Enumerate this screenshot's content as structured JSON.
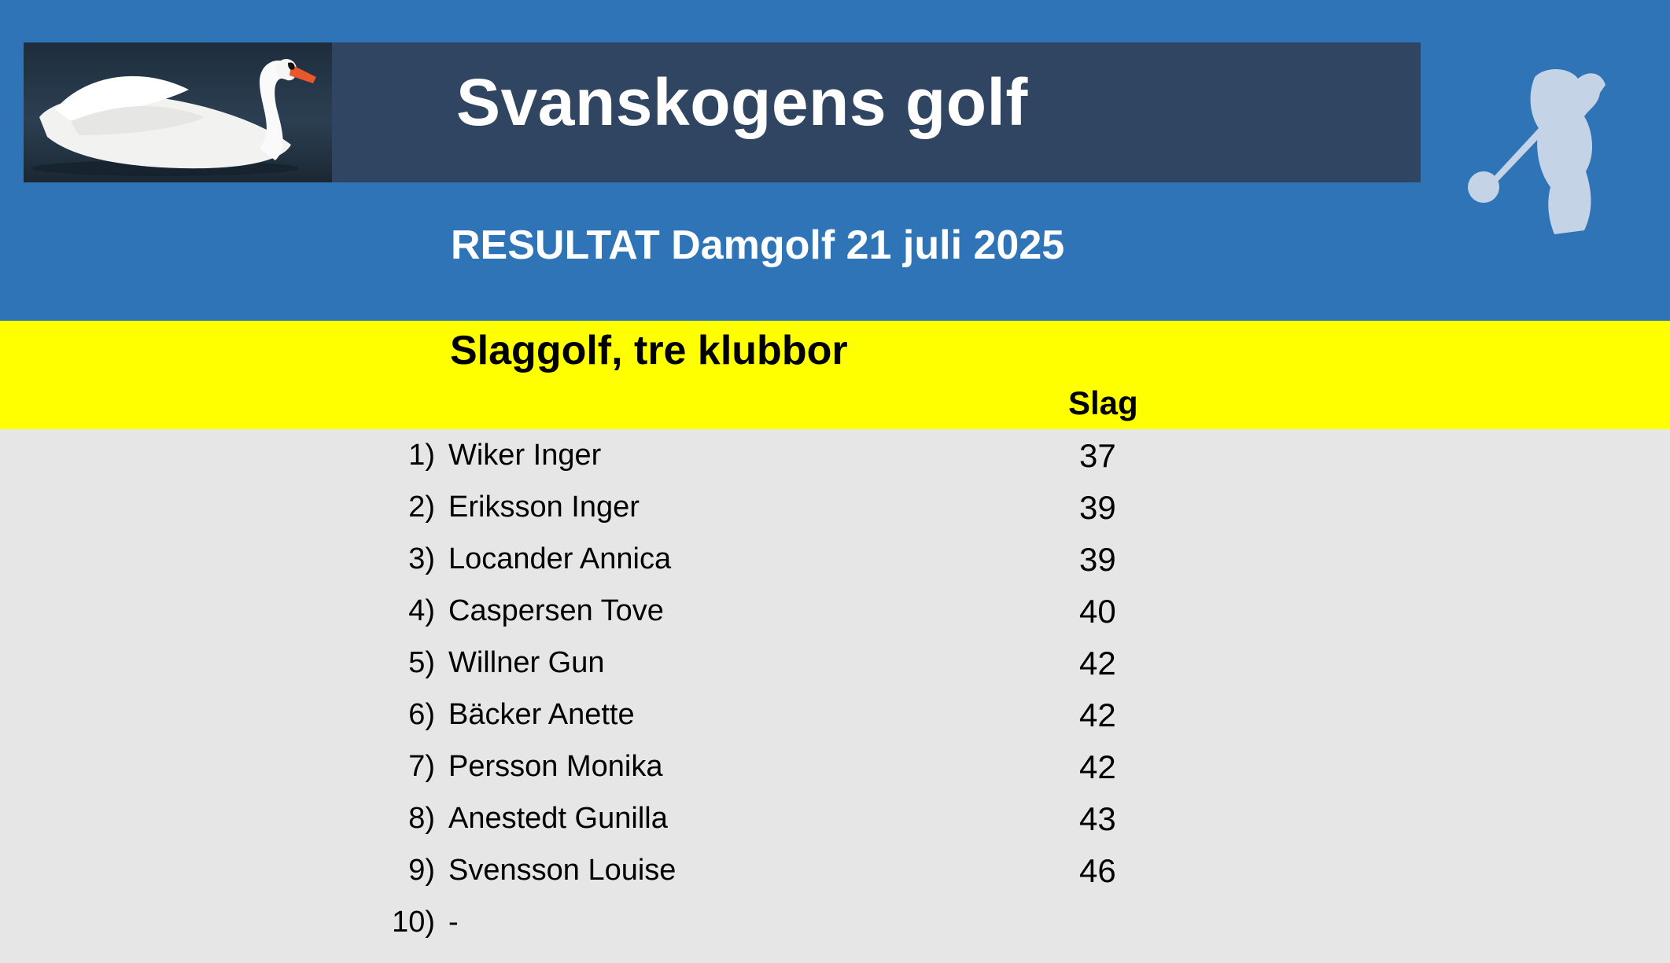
{
  "header": {
    "title": "Svanskogens golf",
    "subtitle": "RESULTAT Damgolf 21 juli 2025"
  },
  "section": {
    "title": "Slaggolf, tre klubbor",
    "column_header": "Slag"
  },
  "results": [
    {
      "rank": "1)",
      "name": "Wiker Inger",
      "score": "37"
    },
    {
      "rank": "2)",
      "name": "Eriksson Inger",
      "score": "39"
    },
    {
      "rank": "3)",
      "name": "Locander Annica",
      "score": "39"
    },
    {
      "rank": "4)",
      "name": "Caspersen Tove",
      "score": "40"
    },
    {
      "rank": "5)",
      "name": "Willner Gun",
      "score": "42"
    },
    {
      "rank": "6)",
      "name": "Bäcker Anette",
      "score": "42"
    },
    {
      "rank": "7)",
      "name": "Persson Monika",
      "score": "42"
    },
    {
      "rank": "8)",
      "name": "Anestedt Gunilla",
      "score": "43"
    },
    {
      "rank": "9)",
      "name": "Svensson Louise",
      "score": "46"
    },
    {
      "rank": "10)",
      "name": " -",
      "score": ""
    }
  ],
  "icons": {
    "swan": "swan-photo",
    "golfer": "golfer-silhouette-icon"
  },
  "colors": {
    "header_blue": "#2f74b7",
    "title_bar": "#2f4562",
    "highlight_yellow": "#ffff00",
    "body_gray": "#e6e6e6"
  }
}
